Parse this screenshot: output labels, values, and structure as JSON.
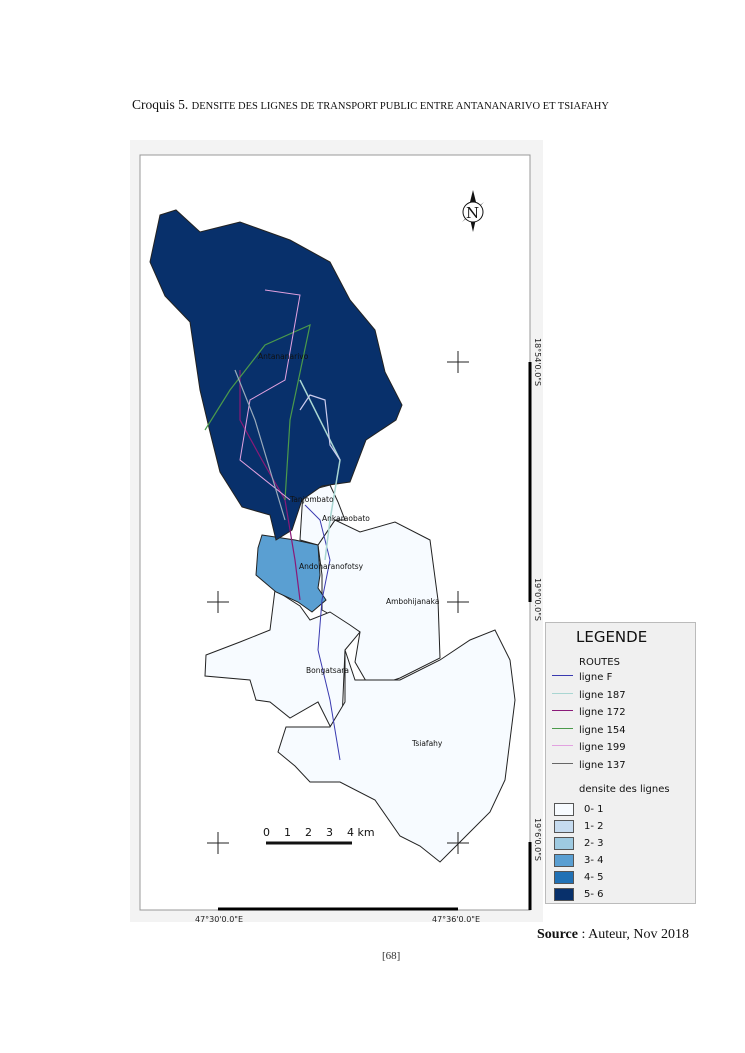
{
  "title": {
    "prefix": "Croquis 5.",
    "text": "DENSITE DES LIGNES DE TRANSPORT PUBLIC ENTRE ANTANANARIVO ET TSIAFAHY"
  },
  "map": {
    "places": [
      "Antananarivo",
      "Tanjombato",
      "Ankaraobato",
      "Andoharanofotsy",
      "Ambohijanaka",
      "Bongatsara",
      "Tsiafahy"
    ],
    "north_label": "N",
    "latitudes": [
      "18°54'0.0\"S",
      "19°0'0.0\"S",
      "19°6'0.0\"S"
    ],
    "longitudes": [
      "47°30'0.0\"E",
      "47°36'0.0\"E"
    ],
    "scale": {
      "ticks": [
        "0",
        "1",
        "2",
        "3",
        "4 km"
      ]
    }
  },
  "legend": {
    "title": "LEGENDE",
    "routes_title": "ROUTES",
    "routes": [
      {
        "label": "ligne F",
        "color": "#3a3ab0"
      },
      {
        "label": "ligne 187",
        "color": "#a9d6d2"
      },
      {
        "label": "ligne 172",
        "color": "#8a1a78"
      },
      {
        "label": "ligne 154",
        "color": "#4b9a4b"
      },
      {
        "label": "ligne 199",
        "color": "#e2a2e0"
      },
      {
        "label": "ligne 137",
        "color": "#666666"
      }
    ],
    "density_title": "densite des lignes",
    "density": [
      {
        "label": "0- 1",
        "color": "#f7fbff"
      },
      {
        "label": "1- 2",
        "color": "#c6dbef"
      },
      {
        "label": "2- 3",
        "color": "#9ecae1"
      },
      {
        "label": "3- 4",
        "color": "#5a9fd2"
      },
      {
        "label": "4- 5",
        "color": "#2171b5"
      },
      {
        "label": "5- 6",
        "color": "#08306b"
      }
    ]
  },
  "source": {
    "label": "Source",
    "text": " : Auteur, Nov 2018"
  },
  "page_number": "[68]"
}
